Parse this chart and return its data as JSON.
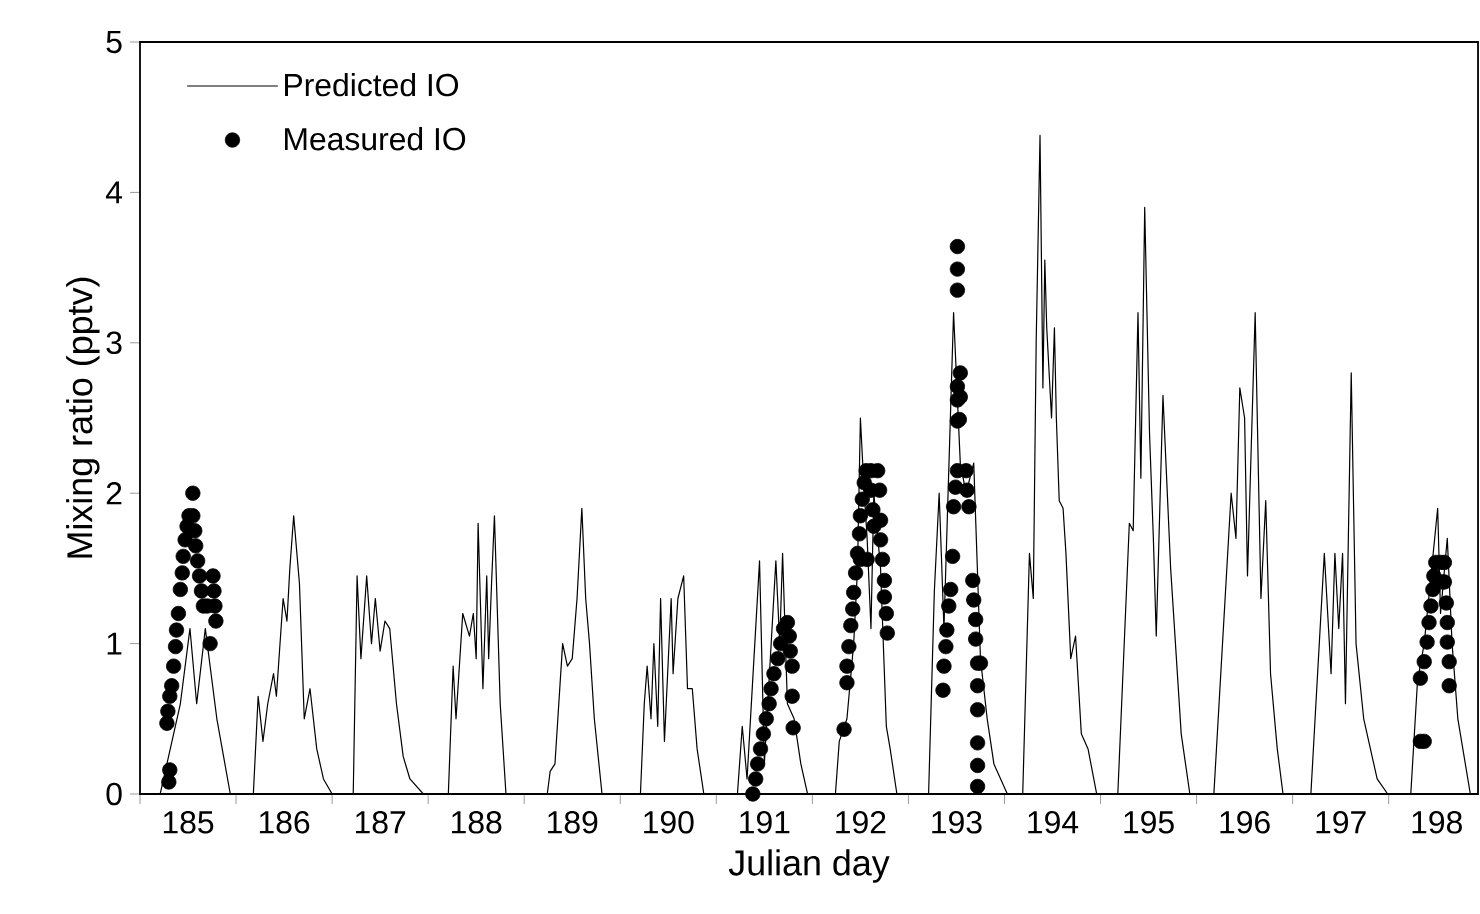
{
  "chart_data": {
    "type": "line",
    "xlabel": "Julian day",
    "ylabel": "Mixing ratio (pptv)",
    "xlim": [
      185,
      198.93
    ],
    "ylim": [
      0,
      5
    ],
    "xticks": [
      {
        "value": 185,
        "label": null
      },
      {
        "value": 185.5,
        "label": "185"
      },
      {
        "value": 186,
        "label": null
      },
      {
        "value": 186.5,
        "label": "186"
      },
      {
        "value": 187,
        "label": null
      },
      {
        "value": 187.5,
        "label": "187"
      },
      {
        "value": 188,
        "label": null
      },
      {
        "value": 188.5,
        "label": "188"
      },
      {
        "value": 189,
        "label": null
      },
      {
        "value": 189.5,
        "label": "189"
      },
      {
        "value": 190,
        "label": null
      },
      {
        "value": 190.5,
        "label": "190"
      },
      {
        "value": 191,
        "label": null
      },
      {
        "value": 191.5,
        "label": "191"
      },
      {
        "value": 192,
        "label": null
      },
      {
        "value": 192.5,
        "label": "192"
      },
      {
        "value": 193,
        "label": null
      },
      {
        "value": 193.5,
        "label": "193"
      },
      {
        "value": 194,
        "label": null
      },
      {
        "value": 194.5,
        "label": "194"
      },
      {
        "value": 195,
        "label": null
      },
      {
        "value": 195.5,
        "label": "195"
      },
      {
        "value": 196,
        "label": null
      },
      {
        "value": 196.5,
        "label": "196"
      },
      {
        "value": 197,
        "label": null
      },
      {
        "value": 197.5,
        "label": "197"
      },
      {
        "value": 198,
        "label": null
      },
      {
        "value": 198.5,
        "label": "198"
      }
    ],
    "yticks": [
      0,
      1,
      2,
      3,
      4,
      5
    ],
    "grid": false,
    "legend": "top left",
    "series": [
      {
        "name": "Predicted IO",
        "type": "line",
        "color": "#000000",
        "line_style": "solid",
        "x": [
          185.21,
          185.42,
          185.52,
          185.59,
          185.68,
          185.8,
          185.94,
          186.18,
          186.23,
          186.28,
          186.33,
          186.39,
          186.42,
          186.49,
          186.53,
          186.56,
          186.6,
          186.66,
          186.71,
          186.77,
          186.84,
          186.91,
          187.0,
          187.22,
          187.26,
          187.3,
          187.36,
          187.41,
          187.45,
          187.5,
          187.55,
          187.6,
          187.67,
          187.74,
          187.81,
          187.95,
          188.21,
          188.26,
          188.29,
          188.36,
          188.43,
          188.47,
          188.5,
          188.52,
          188.57,
          188.61,
          188.63,
          188.66,
          188.69,
          188.75,
          188.81,
          189.24,
          189.27,
          189.32,
          189.4,
          189.45,
          189.5,
          189.55,
          189.6,
          189.64,
          189.68,
          189.73,
          189.81,
          190.21,
          190.25,
          190.28,
          190.32,
          190.35,
          190.39,
          190.42,
          190.46,
          190.53,
          190.55,
          190.6,
          190.66,
          190.7,
          190.75,
          190.8,
          190.87,
          191.22,
          191.27,
          191.32,
          191.45,
          191.5,
          191.62,
          191.66,
          191.69,
          191.74,
          191.81,
          191.88,
          191.95,
          192.24,
          192.28,
          192.36,
          192.43,
          192.47,
          192.5,
          192.54,
          192.57,
          192.61,
          192.64,
          192.71,
          192.77,
          192.81,
          192.88,
          193.21,
          193.27,
          193.32,
          193.37,
          193.47,
          193.54,
          193.6,
          193.68,
          193.75,
          193.82,
          193.89,
          193.96,
          194.03,
          194.19,
          194.26,
          194.3,
          194.33,
          194.37,
          194.4,
          194.42,
          194.44,
          194.49,
          194.52,
          194.54,
          194.57,
          194.61,
          194.64,
          194.69,
          194.74,
          194.8,
          194.87,
          194.96,
          195.18,
          195.3,
          195.34,
          195.39,
          195.42,
          195.46,
          195.51,
          195.55,
          195.58,
          195.65,
          195.73,
          195.84,
          195.93,
          196.18,
          196.36,
          196.41,
          196.45,
          196.5,
          196.53,
          196.61,
          196.67,
          196.72,
          196.77,
          196.84,
          196.9,
          197.19,
          197.33,
          197.4,
          197.44,
          197.48,
          197.52,
          197.55,
          197.61,
          197.66,
          197.74,
          197.88,
          197.99,
          198.23,
          198.3,
          198.37,
          198.51,
          198.54,
          198.61,
          198.66,
          198.72,
          198.85
        ],
        "values": [
          0,
          0.6,
          1.1,
          0.6,
          1.1,
          0.5,
          0,
          0,
          0.65,
          0.35,
          0.6,
          0.8,
          0.65,
          1.3,
          1.15,
          1.5,
          1.85,
          1.4,
          0.5,
          0.7,
          0.3,
          0.1,
          0,
          0,
          1.45,
          0.9,
          1.45,
          1.0,
          1.3,
          0.95,
          1.15,
          1.1,
          0.6,
          0.25,
          0.1,
          0,
          0,
          0.85,
          0.5,
          1.2,
          1.05,
          1.2,
          0.9,
          1.8,
          0.7,
          1.45,
          0.9,
          1.4,
          1.85,
          0.6,
          0,
          0,
          0.15,
          0.2,
          1.0,
          0.85,
          0.9,
          1.3,
          1.9,
          1.3,
          1.0,
          0.5,
          0,
          0,
          0.6,
          0.85,
          0.5,
          1.0,
          0.45,
          1.3,
          0.35,
          1.3,
          0.8,
          1.3,
          1.45,
          0.7,
          0.7,
          0.3,
          0,
          0,
          0.45,
          0.1,
          1.55,
          0.2,
          1.55,
          1.0,
          1.6,
          0.6,
          0.5,
          0.2,
          0,
          0,
          0.35,
          0.5,
          1.0,
          1.5,
          2.5,
          2.0,
          1.7,
          1.1,
          2.0,
          1.5,
          0.45,
          0.3,
          0,
          0,
          1.35,
          2.0,
          1.1,
          3.2,
          2.2,
          2.0,
          2.2,
          0.9,
          0.5,
          0.2,
          0.1,
          0,
          0,
          1.6,
          1.3,
          3.0,
          4.38,
          2.7,
          3.55,
          3.1,
          2.5,
          3.1,
          2.5,
          1.95,
          1.9,
          1.6,
          0.9,
          1.05,
          0.4,
          0.3,
          0,
          0,
          1.8,
          1.75,
          3.2,
          2.1,
          3.9,
          2.4,
          1.7,
          1.05,
          2.65,
          1.5,
          0.4,
          0,
          0,
          2.0,
          1.7,
          2.7,
          2.5,
          1.45,
          3.2,
          1.3,
          1.95,
          0.8,
          0.3,
          0,
          0,
          1.6,
          0.8,
          1.6,
          1.1,
          1.6,
          0.6,
          2.8,
          1.0,
          0.5,
          0.1,
          0,
          0,
          0.75,
          1.0,
          1.9,
          1.2,
          1.7,
          1.0,
          0.5,
          0
        ]
      },
      {
        "name": "Measured IO",
        "type": "scatter",
        "color": "#000000",
        "marker": "circle",
        "x": [
          185.3,
          185.31,
          185.28,
          185.29,
          185.31,
          185.33,
          185.35,
          185.37,
          185.38,
          185.4,
          185.42,
          185.44,
          185.45,
          185.47,
          185.49,
          185.51,
          185.55,
          185.55,
          185.57,
          185.58,
          185.6,
          185.62,
          185.64,
          185.66,
          185.7,
          185.73,
          185.76,
          185.77,
          185.78,
          185.79,
          191.38,
          191.41,
          191.43,
          191.46,
          191.49,
          191.52,
          191.55,
          191.57,
          191.6,
          191.64,
          191.67,
          191.7,
          191.74,
          191.76,
          191.77,
          191.79,
          191.79,
          191.8,
          192.33,
          192.36,
          192.36,
          192.38,
          192.4,
          192.42,
          192.43,
          192.45,
          192.47,
          192.49,
          192.5,
          192.52,
          192.54,
          192.56,
          192.61,
          192.61,
          192.63,
          192.64,
          192.68,
          192.7,
          192.71,
          192.71,
          192.73,
          192.75,
          192.75,
          192.77,
          192.78,
          192.57,
          192.5,
          193.36,
          193.37,
          193.39,
          193.4,
          193.42,
          193.44,
          193.46,
          193.47,
          193.49,
          193.51,
          193.53,
          193.54,
          193.54,
          193.51,
          193.51,
          193.51,
          193.51,
          193.51,
          193.51,
          193.6,
          193.61,
          193.63,
          193.67,
          193.68,
          193.7,
          193.7,
          193.72,
          193.72,
          193.72,
          193.72,
          193.72,
          193.72,
          193.75,
          198.33,
          198.37,
          198.33,
          198.37,
          198.4,
          198.42,
          198.44,
          198.46,
          198.47,
          198.49,
          198.54,
          198.58,
          198.58,
          198.6,
          198.61,
          198.61,
          198.63,
          198.63,
          198.56
        ],
        "values": [
          0.08,
          0.16,
          0.47,
          0.55,
          0.65,
          0.72,
          0.85,
          0.98,
          1.09,
          1.2,
          1.36,
          1.47,
          1.58,
          1.69,
          1.78,
          1.85,
          2.0,
          1.85,
          1.75,
          1.65,
          1.55,
          1.45,
          1.35,
          1.25,
          1.25,
          1.0,
          1.45,
          1.35,
          1.25,
          1.15,
          0,
          0.1,
          0.2,
          0.3,
          0.4,
          0.5,
          0.6,
          0.7,
          0.8,
          0.9,
          1.0,
          1.1,
          1.14,
          1.05,
          0.95,
          0.85,
          0.65,
          0.44,
          0.43,
          0.74,
          0.85,
          0.98,
          1.12,
          1.23,
          1.34,
          1.47,
          1.6,
          1.73,
          1.85,
          1.96,
          2.07,
          2.15,
          2.15,
          2.02,
          1.89,
          1.78,
          2.15,
          2.02,
          1.82,
          1.69,
          1.56,
          1.42,
          1.31,
          1.2,
          1.07,
          1.56,
          1.56,
          0.69,
          0.85,
          0.98,
          1.09,
          1.25,
          1.36,
          1.58,
          1.91,
          2.04,
          2.15,
          2.49,
          2.64,
          2.8,
          3.64,
          3.49,
          3.35,
          2.71,
          2.62,
          2.48,
          2.15,
          2.02,
          1.91,
          1.42,
          1.29,
          1.16,
          1.03,
          0.87,
          0.72,
          0.56,
          0.34,
          0.19,
          0.05,
          0.87,
          0.35,
          0.35,
          0.77,
          0.88,
          1.01,
          1.14,
          1.25,
          1.36,
          1.45,
          1.54,
          1.54,
          1.54,
          1.41,
          1.27,
          1.14,
          1.01,
          0.88,
          0.72,
          1.41
        ]
      }
    ]
  }
}
